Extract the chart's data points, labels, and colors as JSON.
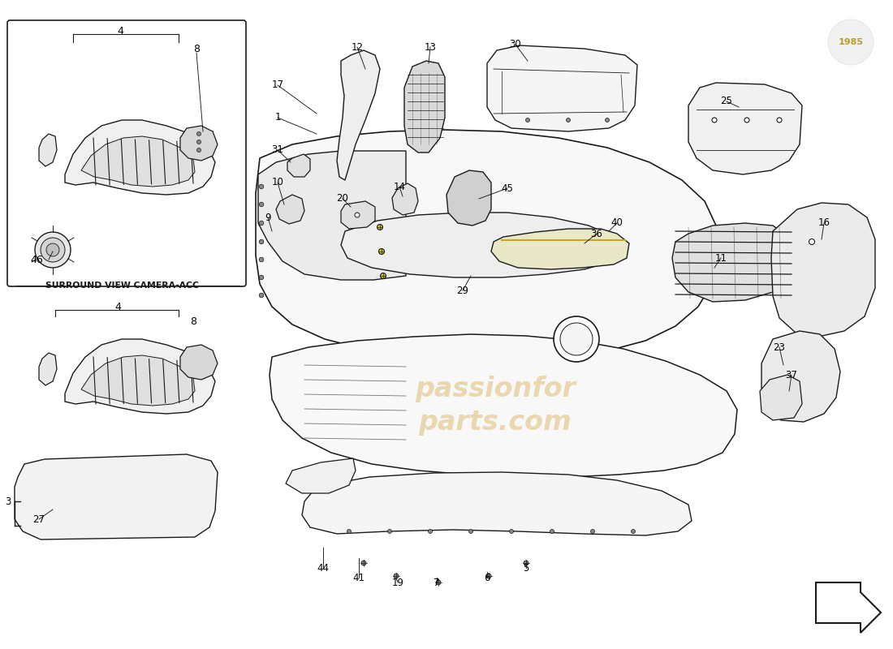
{
  "bg": "#ffffff",
  "lc": "#1a1a1a",
  "watermark_color": "#d4a843",
  "watermark_text": "passionfor\nparts.com",
  "inset_label": "SURROUND VIEW CAMERA-ACC",
  "arrow_color": "#1a1a1a"
}
